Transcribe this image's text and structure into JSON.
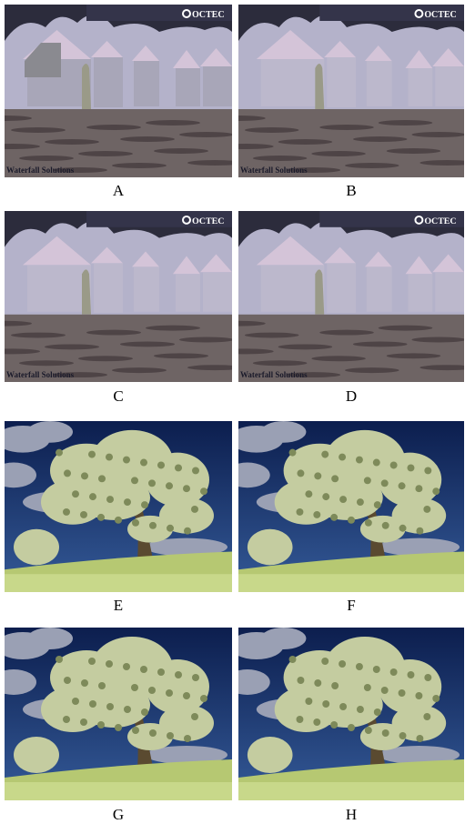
{
  "panels": [
    {
      "label": "A",
      "watermark_top": "OCTEC",
      "watermark_bottom": "Waterfall Solutions"
    },
    {
      "label": "B",
      "watermark_top": "OCTEC",
      "watermark_bottom": "Waterfall Solutions"
    },
    {
      "label": "C",
      "watermark_top": "OCTEC",
      "watermark_bottom": "Waterfall Solutions"
    },
    {
      "label": "D",
      "watermark_top": "OCTEC",
      "watermark_bottom": "Waterfall Solutions"
    },
    {
      "label": "E"
    },
    {
      "label": "F"
    },
    {
      "label": "G"
    },
    {
      "label": "H"
    }
  ]
}
